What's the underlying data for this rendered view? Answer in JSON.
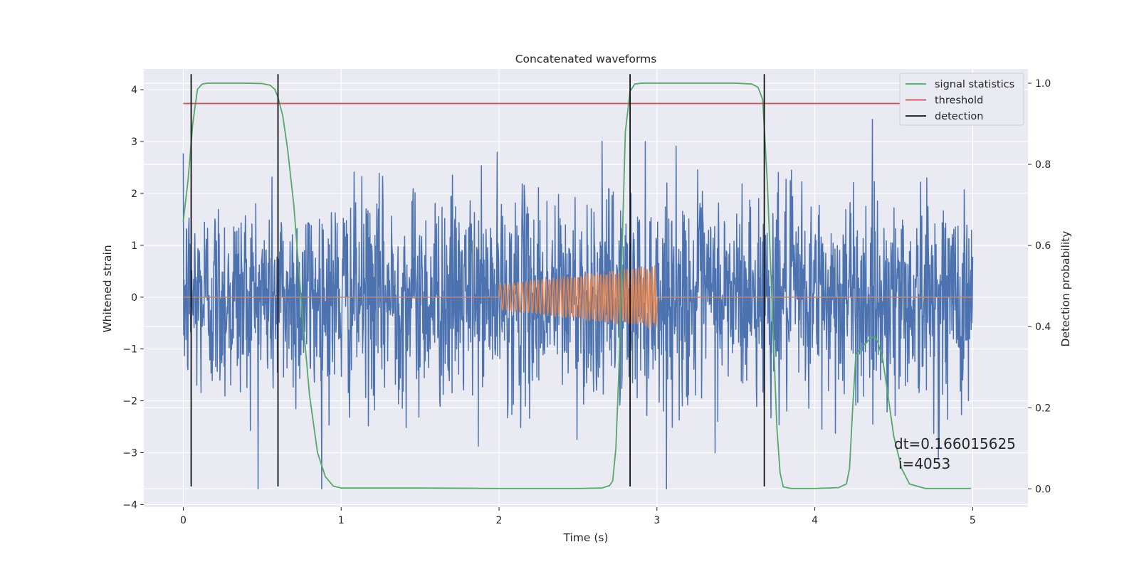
{
  "chart_data": {
    "type": "line",
    "title": "Concatenated waveforms",
    "xlabel": "Time (s)",
    "ylabel": "Whitened strain",
    "y2label": "Detection probability",
    "xlim": [
      -0.25,
      5.35
    ],
    "ylim": [
      -4.05,
      4.4
    ],
    "y2lim": [
      -0.045,
      1.035
    ],
    "xticks": [
      0,
      1,
      2,
      3,
      4,
      5
    ],
    "yticks": [
      -4,
      -3,
      -2,
      -1,
      0,
      1,
      2,
      3,
      4
    ],
    "y2ticks": [
      0.0,
      0.2,
      0.4,
      0.6,
      0.8,
      1.0
    ],
    "grid": true,
    "legend_position": "top-right",
    "series": [
      {
        "name": "",
        "axis": "left",
        "color": "#4c72b0",
        "kind": "noise",
        "x_range": [
          0,
          5
        ],
        "points": 2048,
        "sigma": 1.0,
        "y_min": -3.7,
        "y_max": 4.3
      },
      {
        "name": "",
        "axis": "left",
        "color": "#dd8452",
        "kind": "chirp",
        "x_range": [
          0,
          5
        ],
        "chirp_start": 2.0,
        "chirp_end": 3.0,
        "amp_start": 0.25,
        "amp_end": 0.62,
        "freq_start": 34,
        "freq_end": 60
      },
      {
        "name": "signal statistics",
        "axis": "right",
        "color": "#55a868",
        "x": [
          0.0,
          0.03,
          0.06,
          0.09,
          0.12,
          0.15,
          0.2,
          0.3,
          0.4,
          0.5,
          0.55,
          0.58,
          0.6,
          0.63,
          0.66,
          0.7,
          0.75,
          0.8,
          0.85,
          0.9,
          0.95,
          1.0,
          1.5,
          2.0,
          2.5,
          2.65,
          2.7,
          2.72,
          2.74,
          2.76,
          2.78,
          2.8,
          2.83,
          2.86,
          2.9,
          3.0,
          3.5,
          3.6,
          3.64,
          3.67,
          3.7,
          3.72,
          3.74,
          3.76,
          3.78,
          3.8,
          3.85,
          4.0,
          4.15,
          4.2,
          4.22,
          4.24,
          4.26,
          4.28,
          4.3,
          4.35,
          4.38,
          4.4,
          4.43,
          4.46,
          4.5,
          4.55,
          4.6,
          4.7,
          4.99
        ],
        "y": [
          0.66,
          0.76,
          0.9,
          0.985,
          0.998,
          1.0,
          1.0,
          1.0,
          1.0,
          0.999,
          0.995,
          0.985,
          0.965,
          0.92,
          0.84,
          0.7,
          0.45,
          0.23,
          0.09,
          0.03,
          0.007,
          0.002,
          0.002,
          0.001,
          0.001,
          0.002,
          0.008,
          0.02,
          0.1,
          0.3,
          0.6,
          0.88,
          0.98,
          0.998,
          1.0,
          1.0,
          1.0,
          0.998,
          0.99,
          0.96,
          0.75,
          0.55,
          0.35,
          0.15,
          0.04,
          0.005,
          0.001,
          0.001,
          0.003,
          0.012,
          0.05,
          0.2,
          0.33,
          0.34,
          0.35,
          0.37,
          0.375,
          0.36,
          0.32,
          0.24,
          0.13,
          0.05,
          0.012,
          0.001,
          0.001
        ]
      },
      {
        "name": "threshold",
        "axis": "right",
        "color": "#c44e52",
        "x": [
          0.0,
          5.1
        ],
        "y": [
          0.95,
          0.95
        ]
      },
      {
        "name": "detection",
        "axis": "left",
        "color": "#111111",
        "kind": "vlines",
        "x": [
          0.05,
          0.6,
          2.83,
          3.68
        ],
        "y_range": [
          -3.65,
          4.3
        ]
      }
    ],
    "annotations": [
      "dt=0.166015625",
      "i=4053"
    ]
  }
}
